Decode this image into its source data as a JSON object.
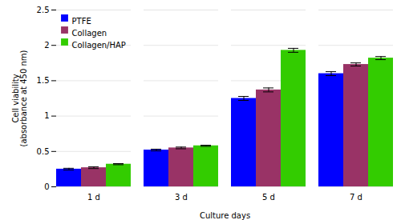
{
  "chart_data": {
    "type": "bar",
    "categories": [
      "1 d",
      "3 d",
      "5 d",
      "7 d"
    ],
    "series": [
      {
        "name": "PTFE",
        "color": "#0000FF",
        "values": [
          0.25,
          0.52,
          1.25,
          1.6
        ],
        "errors": [
          0.012,
          0.012,
          0.028,
          0.028
        ]
      },
      {
        "name": "Collagen",
        "color": "#993366",
        "values": [
          0.27,
          0.55,
          1.37,
          1.73
        ],
        "errors": [
          0.012,
          0.012,
          0.028,
          0.022
        ]
      },
      {
        "name": "Collagen/HAP",
        "color": "#33CC00",
        "values": [
          0.32,
          0.58,
          1.93,
          1.82
        ],
        "errors": [
          0.008,
          0.008,
          0.028,
          0.022
        ]
      }
    ],
    "xlabel": "Culture days",
    "ylabel": "Cell viability\n(absorbance at 450 nm)",
    "ylim": [
      0,
      2.5
    ],
    "yticks": [
      0,
      0.5,
      1,
      1.5,
      2,
      2.5
    ],
    "grid": true,
    "legend": "upper left"
  }
}
